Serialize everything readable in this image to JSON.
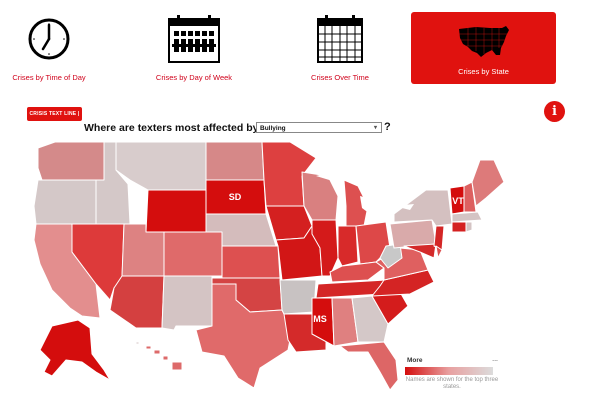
{
  "nav": {
    "items": [
      {
        "label": "Crises by Time of Day",
        "icon": "clock-icon",
        "active": false
      },
      {
        "label": "Crises by Day of Week",
        "icon": "calendar-week-icon",
        "active": false
      },
      {
        "label": "Crises Over Time",
        "icon": "calendar-icon",
        "active": false
      },
      {
        "label": "Crises by State",
        "icon": "us-map-icon",
        "active": true
      }
    ]
  },
  "brand": {
    "label": "CRISIS TEXT LINE |"
  },
  "info": {
    "label": "i"
  },
  "question": {
    "text": "Where are texters most affected by",
    "suffix": "?"
  },
  "issue_select": {
    "value": "Bullying",
    "caret": "▾"
  },
  "map": {
    "highlighted_labels": [
      {
        "abbr": "SD"
      },
      {
        "abbr": "VT"
      },
      {
        "abbr": "MS"
      }
    ]
  },
  "legend": {
    "more_label": "More",
    "less_label": "...",
    "note": "Names are shown for the top three states.",
    "colors": {
      "high": "#d40d0d",
      "mid": "#e8a0a0",
      "low": "#dcdcdc"
    }
  },
  "colors": {
    "accent": "#e0120f",
    "nav_text": "#d0021b"
  }
}
